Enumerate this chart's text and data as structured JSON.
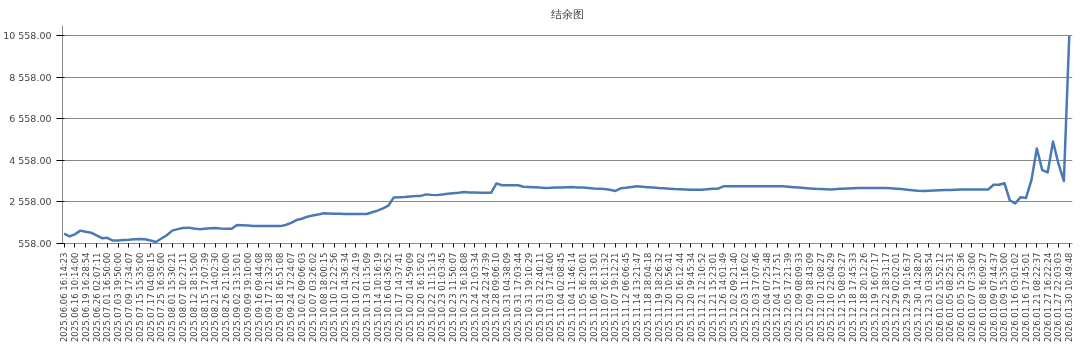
{
  "chart_data": {
    "type": "line",
    "title": "结余图",
    "categories": [
      "2025.06.06 16:14:23",
      null,
      "2025.06.16 10:14:00",
      null,
      "2025.06.19 16:28:54",
      null,
      "2025.06.26 02:07:11",
      null,
      "2025.07.01 16:50:00",
      null,
      "2025.07.03 19:50:00",
      null,
      "2025.07.09 17:34:07",
      null,
      "2025.07.15 15:35:00",
      null,
      "2025.07.17 04:08:15",
      null,
      "2025.07.25 16:35:00",
      null,
      "2025.08.01 15:30:21",
      null,
      "2025.08.07 10:27:11",
      null,
      "2025.08.12 18:15:00",
      null,
      "2025.08.15 17:07:39",
      null,
      "2025.08.21 14:02:30",
      null,
      "2025.08.26 21:10:00",
      null,
      "2025.09.02 13:15:01",
      null,
      "2025.09.09 19:10:00",
      null,
      "2025.09.16 09:44:08",
      null,
      "2025.09.17 21:32:38",
      null,
      "2025.09.18 16:51:08",
      null,
      "2025.09.24 17:24:07",
      null,
      "2025.10.02 09:06:03",
      null,
      "2025.10.07 03:26:02",
      null,
      "2025.10.08 18:00:15",
      null,
      "2025.10.10 12:22:56",
      null,
      "2025.10.10 14:36:34",
      null,
      "2025.10.10 21:24:19",
      null,
      "2025.10.13 01:15:09",
      null,
      "2025.10.14 10:16:19",
      null,
      "2025.10.16 04:36:52",
      null,
      "2025.10.17 14:37:41",
      null,
      "2025.10.20 14:59:09",
      null,
      "2025.10.20 16:15:02",
      null,
      "2025.10.22 11:15:13",
      null,
      "2025.10.23 01:03:45",
      null,
      "2025.10.23 11:50:07",
      null,
      "2025.10.23 16:18:08",
      null,
      "2025.10.24 21:03:34",
      null,
      "2025.10.24 22:47:39",
      null,
      "2025.10.28 09:06:10",
      null,
      "2025.10.31 04:38:09",
      null,
      "2025.10.31 17:03:44",
      null,
      "2025.10.31 19:10:29",
      null,
      "2025.10.31 22:40:11",
      null,
      "2025.11.03 17:14:00",
      null,
      "2025.11.04 02:08:45",
      null,
      "2025.11.04 11:46:14",
      null,
      "2025.11.05 16:20:01",
      null,
      "2025.11.06 18:13:01",
      null,
      "2025.11.07 16:11:32",
      null,
      "2025.11.07 19:12:21",
      null,
      "2025.11.12 06:06:45",
      null,
      "2025.11.14 13:21:47",
      null,
      "2025.11.18 18:04:18",
      null,
      "2025.11.19 18:26:32",
      null,
      "2025.11.20 10:56:41",
      null,
      "2025.11.20 16:12:44",
      null,
      "2025.11.20 19:45:34",
      null,
      "2025.11.21 12:10:52",
      null,
      "2025.11.21 15:23:01",
      null,
      "2025.11.26 14:01:49",
      null,
      "2025.12.02 09:21:40",
      null,
      "2025.12.03 11:16:02",
      null,
      "2025.12.03 17:07:46",
      null,
      "2025.12.04 07:25:48",
      null,
      "2025.12.04 17:17:51",
      null,
      "2025.12.05 17:21:39",
      null,
      "2025.12.09 08:09:33",
      null,
      "2025.12.09 18:43:09",
      null,
      "2025.12.10 21:08:27",
      null,
      "2025.12.10 22:04:29",
      null,
      "2025.12.15 08:03:27",
      null,
      "2025.12.18 17:45:33",
      null,
      "2025.12.18 20:12:26",
      null,
      "2025.12.19 16:07:17",
      null,
      "2025.12.22 18:31:17",
      null,
      "2025.12.29 02:02:01",
      null,
      "2025.12.29 10:16:37",
      null,
      "2025.12.30 14:28:20",
      null,
      "2025.12.31 03:38:54",
      null,
      "2026.01.02 15:52:12",
      null,
      "2026.01.05 08:25:31",
      null,
      "2026.01.05 15:20:36",
      null,
      "2026.01.07 07:33:00",
      null,
      "2026.01.08 16:09:27",
      null,
      "2026.01.09 07:44:37",
      null,
      "2026.01.09 15:35:00",
      null,
      "2026.01.16 03:01:02",
      null,
      "2026.01.16 17:45:01",
      null,
      "2026.01.21 08:22:37",
      null,
      "2026.01.27 16:22:24",
      null,
      "2026.01.27 22:03:03",
      null,
      "2026.01.30 10:49:48"
    ],
    "series": [
      {
        "color": "#4a7ab5",
        "values": [
          1031,
          900,
          1000,
          1177,
          1120,
          1080,
          950,
          813,
          830,
          700,
          700,
          730,
          740,
          760,
          776,
          760,
          700,
          631,
          800,
          958,
          1180,
          1250,
          1300,
          1322,
          1280,
          1250,
          1270,
          1290,
          1300,
          1280,
          1268,
          1268,
          1450,
          1440,
          1420,
          1400,
          1395,
          1395,
          1395,
          1395,
          1395,
          1450,
          1550,
          1686,
          1750,
          1850,
          1905,
          1950,
          2014,
          2000,
          1990,
          1985,
          1980,
          1978,
          1978,
          1978,
          1978,
          2060,
          2141,
          2250,
          2378,
          2778,
          2790,
          2800,
          2820,
          2840,
          2851,
          2924,
          2900,
          2888,
          2920,
          2950,
          2980,
          3000,
          3033,
          3020,
          3010,
          3000,
          3000,
          2997,
          3452,
          3361,
          3361,
          3361,
          3361,
          3288,
          3280,
          3270,
          3250,
          3236,
          3240,
          3250,
          3260,
          3270,
          3274,
          3260,
          3250,
          3230,
          3210,
          3200,
          3180,
          3150,
          3088,
          3218,
          3240,
          3280,
          3311,
          3290,
          3270,
          3250,
          3230,
          3218,
          3200,
          3180,
          3170,
          3160,
          3150,
          3143,
          3150,
          3170,
          3190,
          3200,
          3311,
          3311,
          3311,
          3311,
          3311,
          3311,
          3311,
          3311,
          3311,
          3311,
          3311,
          3311,
          3290,
          3270,
          3250,
          3230,
          3210,
          3190,
          3180,
          3170,
          3162,
          3180,
          3200,
          3210,
          3220,
          3230,
          3236,
          3236,
          3236,
          3236,
          3236,
          3220,
          3200,
          3180,
          3150,
          3120,
          3100,
          3088,
          3100,
          3110,
          3120,
          3130,
          3140,
          3150,
          3160,
          3162,
          3162,
          3162,
          3162,
          3162,
          3385,
          3385,
          3460,
          2641,
          2492,
          2790,
          2753,
          3608,
          5134,
          4092,
          3980,
          5468,
          4400,
          3571,
          10558
        ]
      }
    ],
    "ylim": [
      558,
      11058
    ],
    "yticks": [
      {
        "value": 558,
        "label": "558.00"
      },
      {
        "value": 2558,
        "label": "2 558.00"
      },
      {
        "value": 4558,
        "label": "4 558.00"
      },
      {
        "value": 6558,
        "label": "6 558.00"
      },
      {
        "value": 8558,
        "label": "8 558.00"
      },
      {
        "value": 10558,
        "label": "10 558.00"
      }
    ],
    "grid": "y",
    "line_style": "solid"
  }
}
